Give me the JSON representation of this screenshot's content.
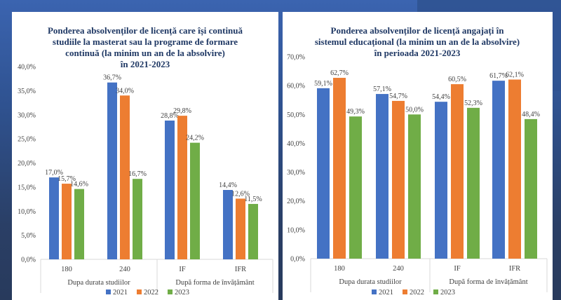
{
  "chart_data": [
    {
      "type": "bar",
      "title_lines": [
        "Ponderea absolvenților de licență care își continuă",
        "studiile la masterat sau la programe de formare",
        "continuă (la minim un an de la absolvire)",
        "în 2021-2023"
      ],
      "categories": [
        "180",
        "240",
        "IF",
        "IFR"
      ],
      "category_groups": [
        {
          "label": "Dupa durata studiilor",
          "categories": [
            "180",
            "240"
          ]
        },
        {
          "label": "După forma de învățământ",
          "categories": [
            "IF",
            "IFR"
          ]
        }
      ],
      "series": [
        {
          "name": "2021",
          "color": "#4472c4",
          "values": [
            17.0,
            36.7,
            28.8,
            14.4
          ],
          "labels": [
            "17,0%",
            "36,7%",
            "28,8%",
            "14,4%"
          ]
        },
        {
          "name": "2022",
          "color": "#ed7d31",
          "values": [
            15.7,
            34.0,
            29.8,
            12.6
          ],
          "labels": [
            "15,7%",
            "34,0%",
            "29,8%",
            "12,6%"
          ]
        },
        {
          "name": "2023",
          "color": "#70ad47",
          "values": [
            14.6,
            16.7,
            24.2,
            11.5
          ],
          "labels": [
            "14,6%",
            "16,7%",
            "24,2%",
            "11,5%"
          ]
        }
      ],
      "ylim": [
        0,
        40
      ],
      "yticks": [
        "0,0%",
        "5,0%",
        "10,0%",
        "15,0%",
        "20,0%",
        "25,0%",
        "30,0%",
        "35,0%",
        "40,0%"
      ],
      "ytick_values": [
        0,
        5,
        10,
        15,
        20,
        25,
        30,
        35,
        40
      ],
      "xlabel": "",
      "ylabel": "",
      "grid": false,
      "legend": "bottom"
    },
    {
      "type": "bar",
      "title_lines": [
        "Ponderea absolvenților de licență angajați  în",
        "sistemul educațional (la minim un an de la absolvire)",
        "în perioada 2021-2023"
      ],
      "categories": [
        "180",
        "240",
        "IF",
        "IFR"
      ],
      "category_groups": [
        {
          "label": "Dupa durata studiilor",
          "categories": [
            "180",
            "240"
          ]
        },
        {
          "label": "După forma de învățământ",
          "categories": [
            "IF",
            "IFR"
          ]
        }
      ],
      "series": [
        {
          "name": "2021",
          "color": "#4472c4",
          "values": [
            59.1,
            57.1,
            54.4,
            61.7
          ],
          "labels": [
            "59,1%",
            "57,1%",
            "54,4%",
            "61,7%"
          ]
        },
        {
          "name": "2022",
          "color": "#ed7d31",
          "values": [
            62.7,
            54.7,
            60.5,
            62.1
          ],
          "labels": [
            "62,7%",
            "54,7%",
            "60,5%",
            "62,1%"
          ]
        },
        {
          "name": "2023",
          "color": "#70ad47",
          "values": [
            49.3,
            50.0,
            52.3,
            48.4
          ],
          "labels": [
            "49,3%",
            "50,0%",
            "52,3%",
            "48,4%"
          ]
        }
      ],
      "ylim": [
        0,
        70
      ],
      "yticks": [
        "0,0%",
        "10,0%",
        "20,0%",
        "30,0%",
        "40,0%",
        "50,0%",
        "60,0%",
        "70,0%"
      ],
      "ytick_values": [
        0,
        10,
        20,
        30,
        40,
        50,
        60,
        70
      ],
      "xlabel": "",
      "ylabel": "",
      "grid": false,
      "legend": "bottom"
    }
  ]
}
